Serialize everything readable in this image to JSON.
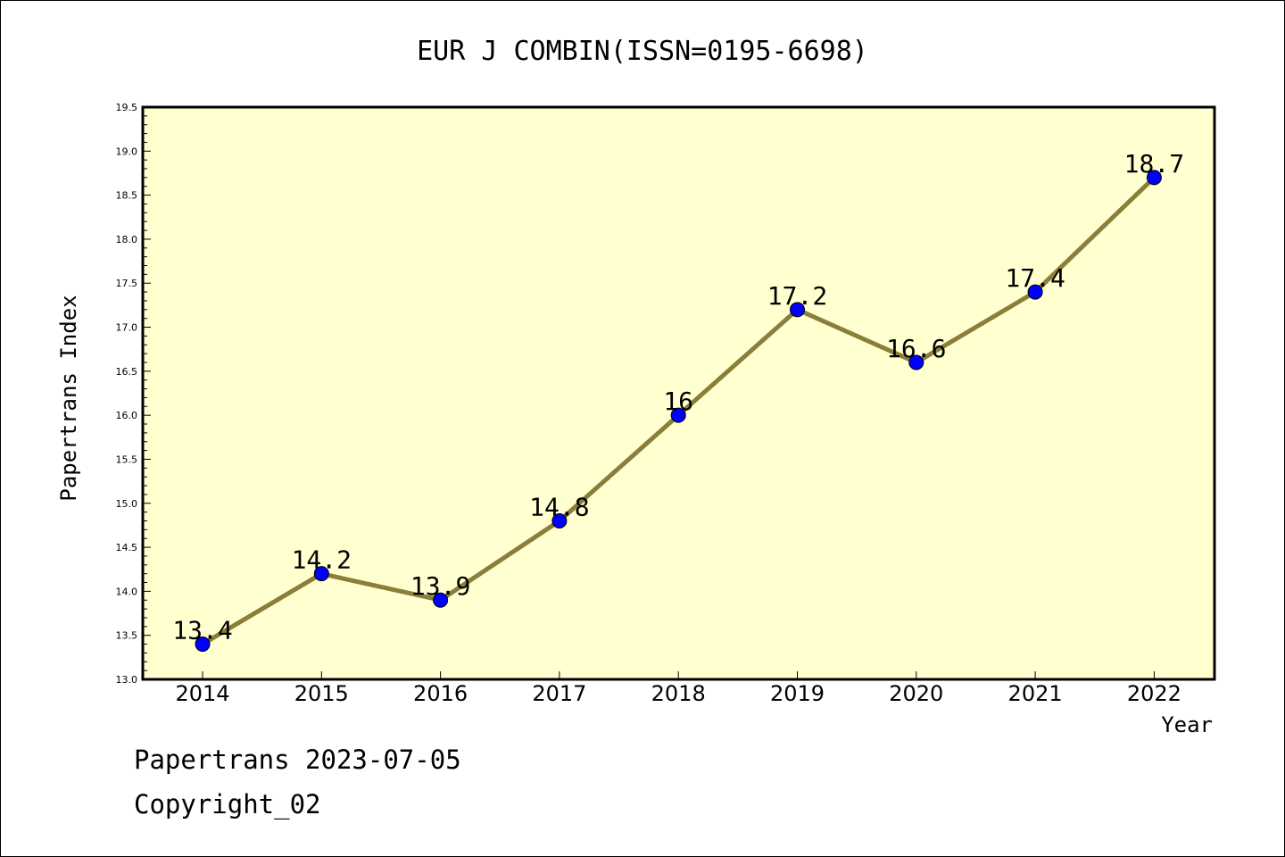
{
  "chart_data": {
    "type": "line",
    "title": "EUR J COMBIN(ISSN=0195-6698)",
    "xlabel": "Year",
    "ylabel": "Papertrans Index",
    "categories": [
      "2014",
      "2015",
      "2016",
      "2017",
      "2018",
      "2019",
      "2020",
      "2021",
      "2022"
    ],
    "series": [
      {
        "values": [
          13.4,
          14.2,
          13.9,
          14.8,
          16,
          17.2,
          16.6,
          17.4,
          18.7
        ],
        "labels": [
          "13.4",
          "14.2",
          "13.9",
          "14.8",
          "16",
          "17.2",
          "16.6",
          "17.4",
          "18.7"
        ]
      }
    ],
    "ylim": [
      13.0,
      19.5
    ],
    "yticks": [
      "13.0",
      "13.5",
      "14.0",
      "14.5",
      "15.0",
      "15.5",
      "16.0",
      "16.5",
      "17.0",
      "17.5",
      "18.0",
      "18.5",
      "19.0",
      "19.5"
    ],
    "grid": false,
    "colors": {
      "plot_background": "#ffffd0",
      "line": "#8b7d3a",
      "marker": "#0000ff"
    }
  },
  "footer": {
    "date_text": "Papertrans 2023-07-05",
    "copyright_text": "Copyright_02"
  }
}
